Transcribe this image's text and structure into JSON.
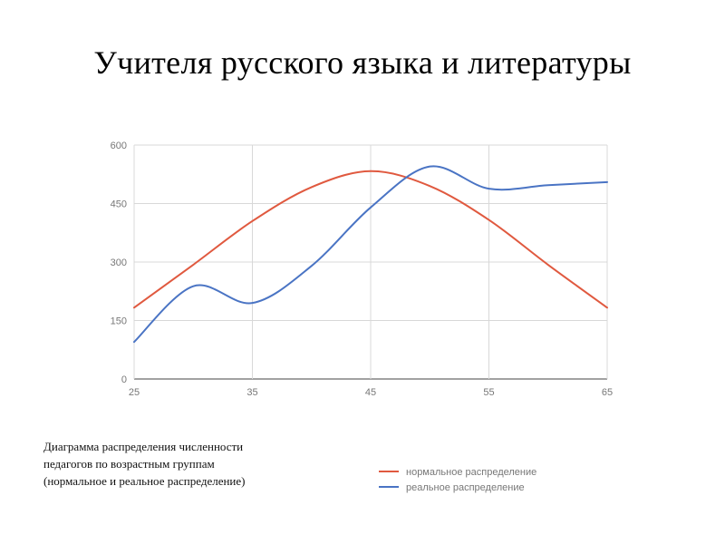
{
  "slide": {
    "title": "Учителя русского языка и литературы",
    "caption_lines": [
      "Диаграмма распределения численности",
      "педагогов по возрастным группам",
      "(нормальное и реальное распределение)"
    ]
  },
  "chart_data": {
    "type": "line",
    "title": "",
    "xlabel": "",
    "ylabel": "",
    "xlim": [
      25,
      65
    ],
    "ylim": [
      0,
      600
    ],
    "x_ticks": [
      25,
      35,
      45,
      55,
      65
    ],
    "y_ticks": [
      0,
      150,
      300,
      450,
      600
    ],
    "grid": true,
    "smooth": true,
    "legend_position": "bottom-right",
    "series": [
      {
        "name": "нормальное распределение",
        "color": "#e0593f",
        "x": [
          25,
          30,
          35,
          40,
          45,
          50,
          55,
          60,
          65
        ],
        "y": [
          183,
          293,
          405,
          492,
          533,
          495,
          408,
          293,
          183
        ]
      },
      {
        "name": "реальное распределение",
        "color": "#4a74c4",
        "x": [
          25,
          30,
          35,
          40,
          45,
          50,
          55,
          60,
          65
        ],
        "y": [
          95,
          238,
          195,
          290,
          440,
          545,
          488,
          497,
          505
        ]
      }
    ]
  }
}
